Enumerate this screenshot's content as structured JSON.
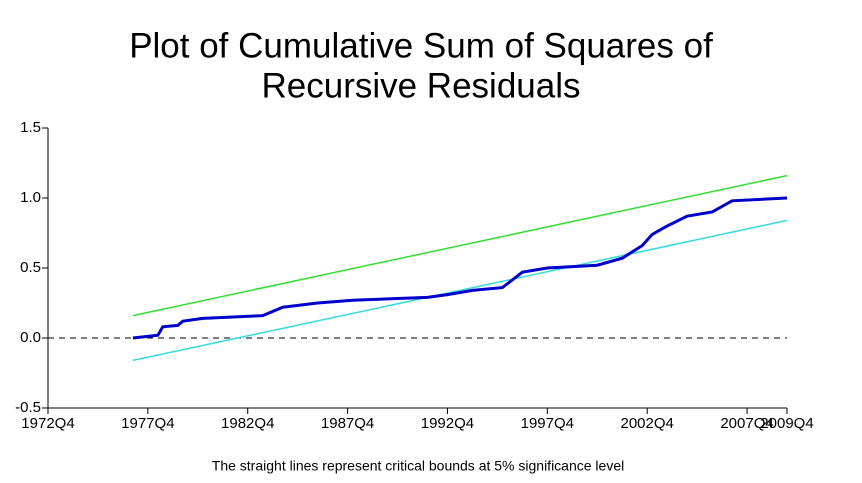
{
  "chart_data": {
    "type": "line",
    "title": [
      "Plot of Cumulative Sum of Squares of",
      "Recursive Residuals"
    ],
    "note": "The straight lines represent critical bounds at 5% significance level",
    "xlim": [
      "1972Q4",
      "2009Q4"
    ],
    "xticks": [
      "1972Q4",
      "1977Q4",
      "1982Q4",
      "1987Q4",
      "1992Q4",
      "1997Q4",
      "2002Q4",
      "2007Q4",
      "2009Q4"
    ],
    "ylim": [
      -0.5,
      1.5
    ],
    "yticks": [
      {
        "value": 1.5,
        "label": "1.5"
      },
      {
        "value": 1,
        "label": "1.0"
      },
      0.5,
      {
        "value": 0,
        "label": "0.0"
      },
      -0.5
    ],
    "hline": 0,
    "series": [
      {
        "color": "#0000cc",
        "width": 3,
        "x": [
          "1977Q1",
          "1978Q2",
          "1978Q3",
          "1979Q2",
          "1979Q3",
          "1980Q3",
          "1983Q3",
          "1984Q3",
          "1986Q2",
          "1988Q1",
          "1991Q4",
          "1992Q4",
          "1994Q1",
          "1995Q3",
          "1996Q3",
          "1997Q4",
          "2000Q2",
          "2001Q3",
          "2002Q3",
          "2003Q1",
          "2003Q4",
          "2004Q4",
          "2006Q1",
          "2007Q1",
          "2009Q4"
        ],
        "values": [
          0.0,
          0.02,
          0.08,
          0.09,
          0.12,
          0.14,
          0.16,
          0.22,
          0.25,
          0.27,
          0.29,
          0.31,
          0.34,
          0.36,
          0.47,
          0.5,
          0.52,
          0.57,
          0.66,
          0.74,
          0.8,
          0.87,
          0.9,
          0.98,
          1.0
        ]
      },
      {
        "color": "#33dd33",
        "width": 1.5,
        "x": [
          "1977Q1",
          "2009Q4"
        ],
        "values": [
          0.16,
          1.16
        ]
      },
      {
        "color": "#33dddd",
        "width": 1.5,
        "x": [
          "1977Q1",
          "2009Q4"
        ],
        "values": [
          -0.16,
          0.84
        ]
      }
    ]
  }
}
